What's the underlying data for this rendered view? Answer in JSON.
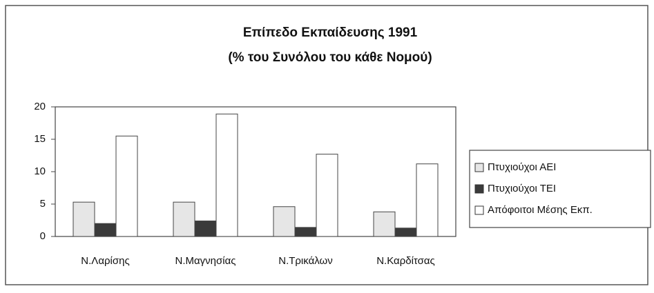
{
  "chart_data": {
    "type": "bar",
    "title": "Επίπεδο Εκπαίδευσης  1991",
    "subtitle": "(% του Συνόλου του κάθε Νομού)",
    "categories": [
      "Ν.Λαρίσης",
      "Ν.Μαγνησίας",
      "Ν.Τρικάλων",
      "Ν.Καρδίτσας"
    ],
    "series": [
      {
        "name": "Πτυχιούχοι ΑΕΙ",
        "color": "#e6e6e6",
        "values": [
          5.3,
          5.3,
          4.6,
          3.8
        ]
      },
      {
        "name": "Πτυχιούχοι ΤΕΙ",
        "color": "#3a3a3a",
        "values": [
          2.0,
          2.4,
          1.4,
          1.3
        ]
      },
      {
        "name": "Απόφοιτοι Μέσης Εκπ.",
        "color": "#ffffff",
        "values": [
          15.5,
          18.9,
          12.7,
          11.2
        ]
      }
    ],
    "ylim": [
      0,
      20
    ],
    "yticks": [
      0,
      5,
      10,
      15,
      20
    ],
    "grid": false,
    "legend": "right"
  }
}
